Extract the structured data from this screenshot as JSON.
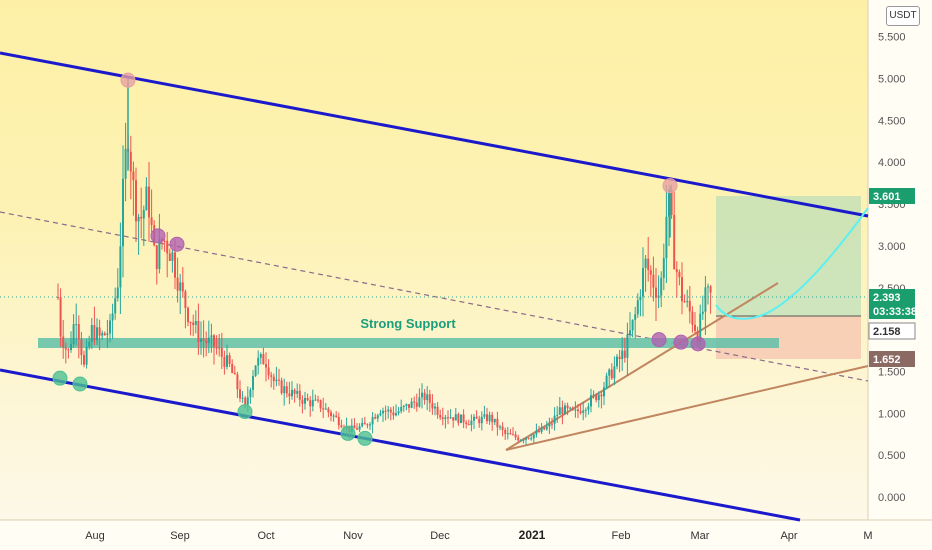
{
  "chart_data": {
    "type": "candlestick",
    "currency": "USDT",
    "y_axis": {
      "ticks": [
        "0.000",
        "0.500",
        "1.000",
        "1.500",
        "2.000",
        "2.500",
        "3.000",
        "3.500",
        "4.000",
        "4.500",
        "5.000",
        "5.500"
      ],
      "range": [
        -0.2,
        5.9
      ]
    },
    "x_axis": {
      "months": [
        "Aug",
        "Sep",
        "Oct",
        "Nov",
        "Dec",
        "2021",
        "Feb",
        "Mar",
        "Apr",
        "M"
      ]
    },
    "price_tags": [
      {
        "label": "3.601",
        "color": "#1a9e6e"
      },
      {
        "label": "2.393",
        "sub": "03:33:38",
        "color": "#1a9e6e"
      },
      {
        "label": "2.158",
        "color": "#c9c9c9"
      },
      {
        "label": "1.652",
        "color": "#8a6a63"
      }
    ],
    "annotations": {
      "support_label": "Strong Support"
    },
    "colors": {
      "candle_up": "#26a69a",
      "candle_down": "#ef5350",
      "channel": "#1a1acc",
      "support": "#5fbfa8",
      "trendline": "#c08660",
      "projection": "#5cf0f0"
    }
  }
}
